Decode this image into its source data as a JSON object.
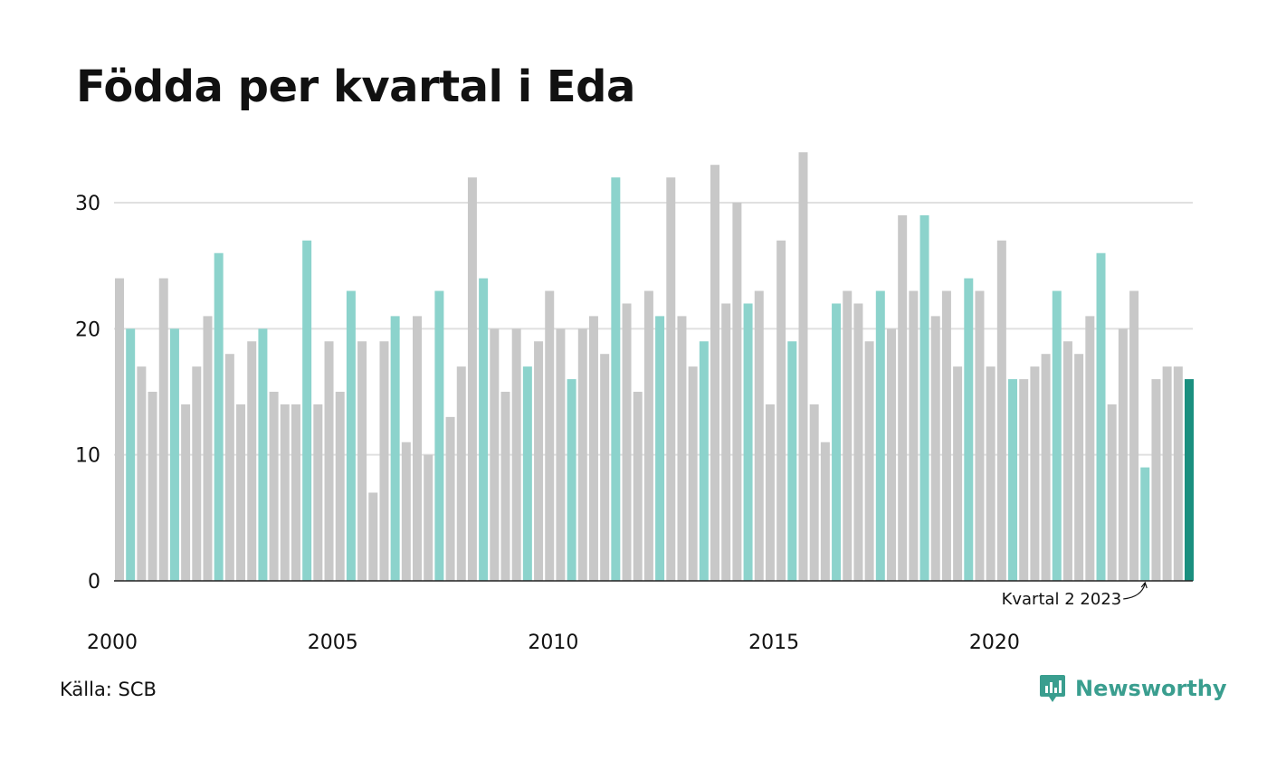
{
  "title": "Födda per kvartal i Eda",
  "source": "Källa: SCB",
  "brand": {
    "name": "Newsworthy",
    "icon": "newsworthy-logo-icon"
  },
  "colors": {
    "highlight": "#8cd3cc",
    "other": "#c8c8c8",
    "latest": "#1a8f7f",
    "grid": "#e0e0e0",
    "axis": "#222222"
  },
  "annotation": {
    "text": "Kvartal 2 2023",
    "target_index": 93
  },
  "chart_data": {
    "type": "bar",
    "title": "Födda per kvartal i Eda",
    "xlabel": "",
    "ylabel": "",
    "ylim": [
      0,
      35
    ],
    "yticks": [
      0,
      10,
      20,
      30
    ],
    "grid": true,
    "xtick_labels": [
      "2000",
      "2005",
      "2010",
      "2015",
      "2020"
    ],
    "start": "2000 Q1",
    "end": "2024 Q2",
    "highlighted_quarter": 2,
    "values": [
      24,
      20,
      17,
      15,
      24,
      20,
      14,
      17,
      21,
      26,
      18,
      14,
      19,
      20,
      15,
      14,
      14,
      27,
      14,
      19,
      15,
      23,
      19,
      7,
      19,
      21,
      11,
      21,
      10,
      23,
      13,
      17,
      32,
      24,
      20,
      15,
      20,
      17,
      19,
      23,
      20,
      16,
      20,
      21,
      18,
      32,
      22,
      15,
      23,
      21,
      32,
      21,
      17,
      19,
      33,
      22,
      30,
      22,
      23,
      14,
      27,
      19,
      34,
      14,
      11,
      22,
      23,
      22,
      19,
      23,
      20,
      29,
      23,
      29,
      21,
      23,
      17,
      24,
      23,
      17,
      27,
      16,
      16,
      17,
      18,
      23,
      19,
      18,
      21,
      26,
      14,
      20,
      23,
      9,
      16,
      17,
      17,
      16
    ]
  }
}
